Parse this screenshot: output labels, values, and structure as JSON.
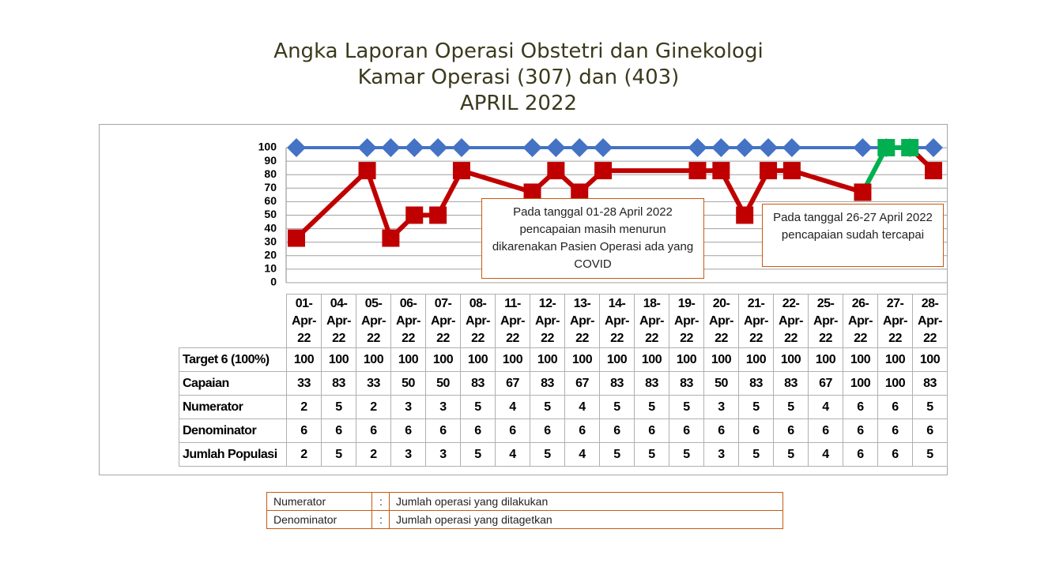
{
  "chart_data": {
    "type": "line",
    "title": [
      "Angka Laporan Operasi Obstetri dan Ginekologi",
      "Kamar Operasi (307) dan (403)",
      "APRIL 2022"
    ],
    "categories": [
      "01-Apr-22",
      "04-Apr-22",
      "05-Apr-22",
      "06-Apr-22",
      "07-Apr-22",
      "08-Apr-22",
      "11-Apr-22",
      "12-Apr-22",
      "13-Apr-22",
      "14-Apr-22",
      "18-Apr-22",
      "19-Apr-22",
      "20-Apr-22",
      "21-Apr-22",
      "22-Apr-22",
      "25-Apr-22",
      "26-Apr-22",
      "27-Apr-22",
      "28-Apr-22"
    ],
    "series": [
      {
        "name": "Target 6 (100%)",
        "color": "#4472c4",
        "marker": "diamond",
        "values": [
          100,
          100,
          100,
          100,
          100,
          100,
          100,
          100,
          100,
          100,
          100,
          100,
          100,
          100,
          100,
          100,
          100,
          100,
          100
        ]
      },
      {
        "name": "Capaian",
        "color": "#c00000",
        "highlight_color": "#00b050",
        "marker": "square",
        "values": [
          33,
          83,
          33,
          50,
          50,
          83,
          67,
          83,
          67,
          83,
          83,
          83,
          50,
          83,
          83,
          67,
          100,
          100,
          83
        ]
      }
    ],
    "table_rows": [
      {
        "name": "Numerator",
        "values": [
          2,
          5,
          2,
          3,
          3,
          5,
          4,
          5,
          4,
          5,
          5,
          5,
          3,
          5,
          5,
          4,
          6,
          6,
          5
        ]
      },
      {
        "name": "Denominator",
        "values": [
          6,
          6,
          6,
          6,
          6,
          6,
          6,
          6,
          6,
          6,
          6,
          6,
          6,
          6,
          6,
          6,
          6,
          6,
          6
        ]
      },
      {
        "name": "Jumlah Populasi",
        "values": [
          2,
          5,
          2,
          3,
          3,
          5,
          4,
          5,
          4,
          5,
          5,
          5,
          3,
          5,
          5,
          4,
          6,
          6,
          5
        ]
      }
    ],
    "ylim": [
      0,
      100
    ],
    "yticks": [
      0,
      10,
      20,
      30,
      40,
      50,
      60,
      70,
      80,
      90,
      100
    ],
    "grid": true,
    "annotations": [
      "Pada tanggal 01-28 April 2022 pencapaian  masih menurun dikarenakan Pasien Operasi ada yang COVID",
      "Pada tanggal 26-27 April 2022 pencapaian sudah tercapai"
    ]
  },
  "definitions": [
    {
      "term": "Numerator",
      "separator": ":",
      "text": "Jumlah operasi yang dilakukan"
    },
    {
      "term": "Denominator",
      "separator": ":",
      "text": "Jumlah operasi yang ditagetkan"
    }
  ]
}
